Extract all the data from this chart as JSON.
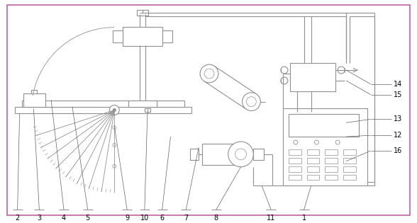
{
  "border_color": "#c060a0",
  "line_color": "#909090",
  "bg_color": "#ffffff",
  "label_color": "#000000",
  "lw": 0.8,
  "thin_lw": 0.6
}
